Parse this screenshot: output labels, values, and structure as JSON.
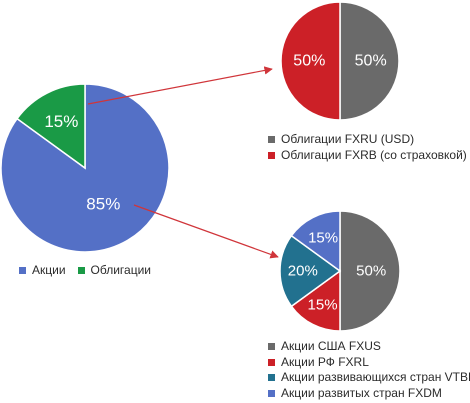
{
  "colors": {
    "blue": "#5470C6",
    "green": "#1A9A46",
    "red": "#CC2027",
    "gray": "#6A6A6A",
    "teal": "#22718F",
    "arrow": "#D0353A"
  },
  "chart_data": [
    {
      "type": "pie",
      "labels": [
        "Акции",
        "Облигации"
      ],
      "values": [
        85,
        15
      ],
      "value_labels": [
        "85%",
        "15%"
      ],
      "colors": [
        "#5470C6",
        "#1A9A46"
      ],
      "legend": "bottom"
    },
    {
      "type": "pie",
      "labels": [
        "Облигации FXRU (USD)",
        "Облигации FXRB (со страховкой)"
      ],
      "values": [
        50,
        50
      ],
      "value_labels": [
        "50%",
        "50%"
      ],
      "colors": [
        "#6A6A6A",
        "#CC2027"
      ],
      "legend": "bottom"
    },
    {
      "type": "pie",
      "labels": [
        "Акции США FXUS",
        "Акции РФ FXRL",
        "Акции развивающихся стран VTBE",
        "Акции развитых стран FXDM"
      ],
      "values": [
        50,
        15,
        20,
        15
      ],
      "value_labels": [
        "50%",
        "15%",
        "20%",
        "15%"
      ],
      "colors": [
        "#6A6A6A",
        "#CC2027",
        "#22718F",
        "#5470C6"
      ],
      "legend": "bottom"
    }
  ]
}
